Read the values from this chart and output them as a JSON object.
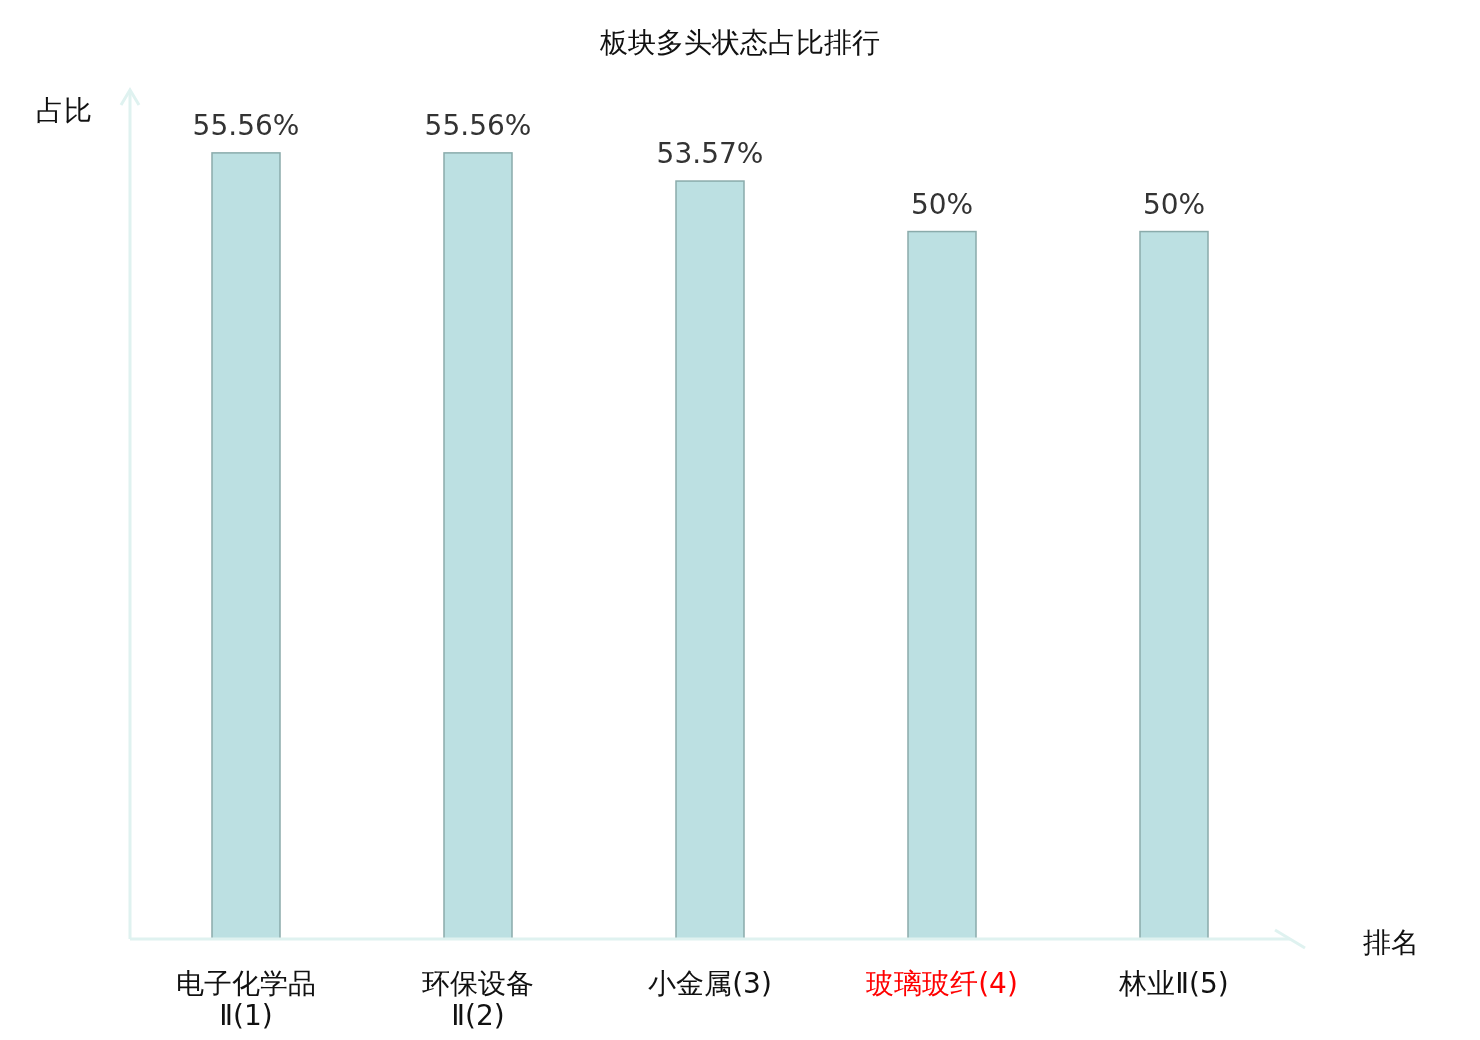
{
  "chart_data": {
    "type": "bar",
    "title": "板块多头状态占比排行",
    "xlabel": "排名",
    "ylabel": "占比",
    "categories": [
      "电子化学品Ⅱ(1)",
      "环保设备Ⅱ(2)",
      "小金属(3)",
      "玻璃玻纤(4)",
      "林业Ⅱ(5)"
    ],
    "values": [
      55.56,
      55.56,
      53.57,
      50,
      50
    ],
    "value_labels": [
      "55.56%",
      "55.56%",
      "53.57%",
      "50%",
      "50%"
    ],
    "color": "#bce0e2"
  }
}
